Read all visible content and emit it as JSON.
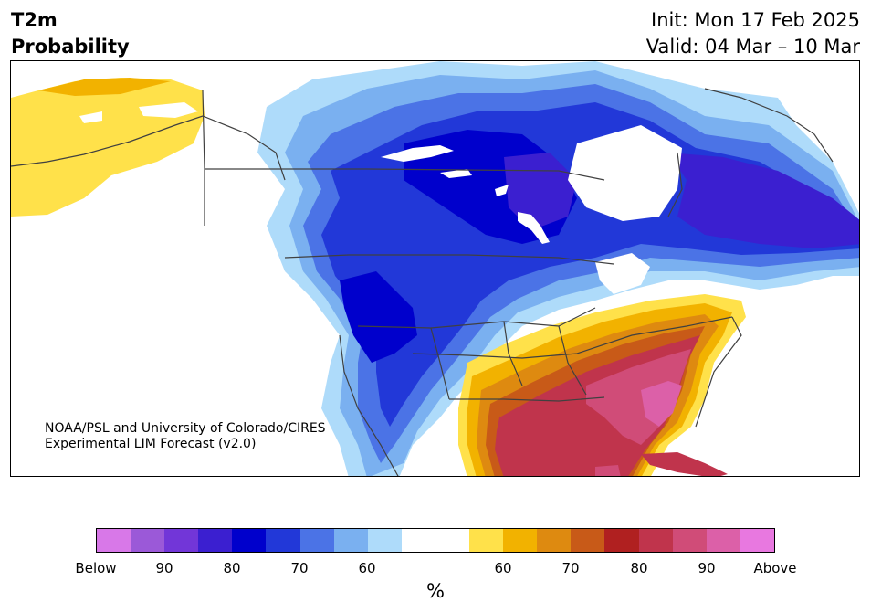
{
  "header": {
    "variable": "T2m",
    "kind": "Probability",
    "init": "Init: Mon 17 Feb 2025",
    "valid": "Valid: 04 Mar – 10 Mar"
  },
  "credit": {
    "line1": "NOAA/PSL and University of Colorado/CIRES",
    "line2": "Experimental LIM Forecast (v2.0)"
  },
  "colorbar": {
    "colors": [
      "#d878e8",
      "#9b59d8",
      "#7236d8",
      "#3b1fd0",
      "#0000cc",
      "#2238d8",
      "#4b73e6",
      "#7ab0f0",
      "#aedbfa",
      "#ffffff",
      "#ffffff",
      "#ffe14a",
      "#f2b200",
      "#de8a10",
      "#c85a18",
      "#b02020",
      "#c0344c",
      "#d04c78",
      "#dc60a8",
      "#e878e0"
    ],
    "labels": [
      "Below",
      "90",
      "80",
      "70",
      "60",
      "60",
      "70",
      "80",
      "90",
      "Above"
    ],
    "unit": "%"
  },
  "legend_colors": {
    "below_strong": "#0000cc",
    "below_light": "#aedbfa",
    "above_strong": "#b02020",
    "above_light": "#ffe14a"
  }
}
